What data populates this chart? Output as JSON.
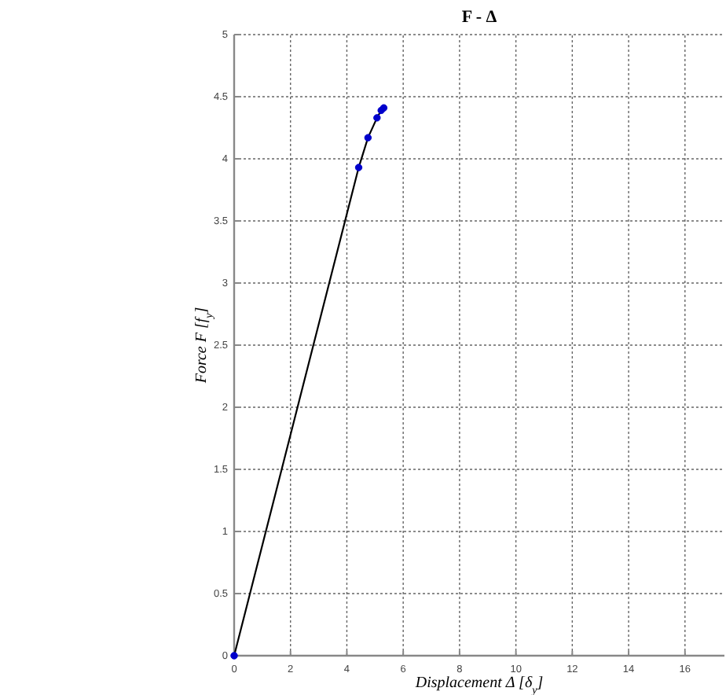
{
  "chart_data": {
    "type": "line",
    "title": "F - Δ",
    "xlabel": "Displacement Δ [δ$_{y}$]",
    "ylabel": "Force F [f$_{y}$]",
    "series": [
      {
        "color": "#000000",
        "line_style": "solid",
        "marker": "none",
        "x": [
          0,
          4.42,
          4.75,
          5.07,
          5.22,
          5.31
        ],
        "values": [
          0,
          3.93,
          4.17,
          4.33,
          4.39,
          4.41
        ]
      },
      {
        "type": "scatter",
        "color": "#0000cc",
        "marker": "circle",
        "x": [
          0,
          4.42,
          4.75,
          5.07,
          5.22,
          5.31
        ],
        "values": [
          0,
          3.93,
          4.17,
          4.33,
          4.39,
          4.41
        ]
      }
    ],
    "xlim": [
      0,
      17.4
    ],
    "xticks": [
      0,
      2,
      4,
      6,
      8,
      10,
      12,
      14,
      16
    ],
    "ylim": [
      0,
      5
    ],
    "yticks": [
      0,
      0.5,
      1,
      1.5,
      2,
      2.5,
      3,
      3.5,
      4,
      4.5,
      5
    ],
    "grid": true
  }
}
